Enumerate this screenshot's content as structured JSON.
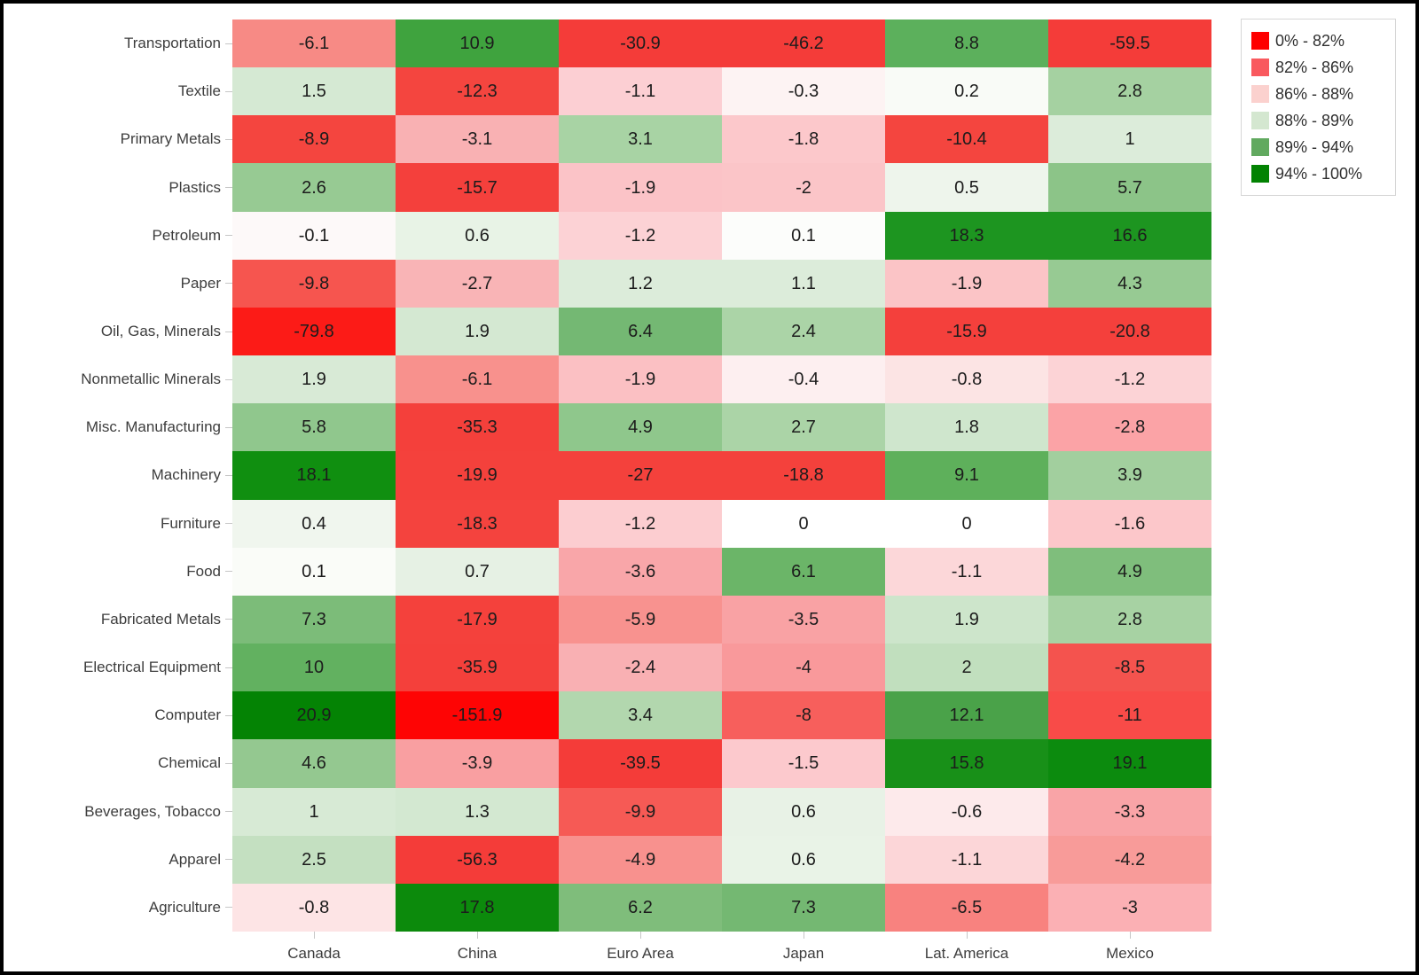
{
  "chart_data": {
    "type": "heatmap",
    "title": "",
    "xlabel": "",
    "ylabel": "",
    "grid": false,
    "columns": [
      "Canada",
      "China",
      "Euro Area",
      "Japan",
      "Lat. America",
      "Mexico"
    ],
    "rows": [
      {
        "label": "Transportation",
        "values": [
          -6.1,
          10.9,
          -30.9,
          -46.2,
          8.8,
          -59.5
        ],
        "colors": [
          "#f78a85",
          "#3fa33e",
          "#f43c39",
          "#f43c39",
          "#5cb05c",
          "#f43c39"
        ]
      },
      {
        "label": "Textile",
        "values": [
          1.5,
          -12.3,
          -1.1,
          -0.3,
          0.2,
          2.8
        ],
        "colors": [
          "#d5e9d3",
          "#f4453f",
          "#fccfd3",
          "#fdf3f3",
          "#f9fbf7",
          "#a5d1a1"
        ]
      },
      {
        "label": "Primary Metals",
        "values": [
          -8.9,
          -3.1,
          3.1,
          -1.8,
          -10.4,
          1
        ],
        "colors": [
          "#f4453f",
          "#f9b1b3",
          "#a8d3a4",
          "#fcc8cb",
          "#f4453f",
          "#dcecda"
        ]
      },
      {
        "label": "Plastics",
        "values": [
          2.6,
          -15.7,
          -1.9,
          -2,
          0.5,
          5.7
        ],
        "colors": [
          "#97ca93",
          "#f4403c",
          "#fbc3c7",
          "#fbc5c8",
          "#eef5ec",
          "#8cc488"
        ]
      },
      {
        "label": "Petroleum",
        "values": [
          -0.1,
          0.6,
          -1.2,
          0.1,
          18.3,
          16.6
        ],
        "colors": [
          "#fdf9f9",
          "#e8f3e6",
          "#fcd2d5",
          "#fcfdfb",
          "#1d9520",
          "#1d9520"
        ]
      },
      {
        "label": "Paper",
        "values": [
          -9.8,
          -2.7,
          1.2,
          1.1,
          -1.9,
          4.3
        ],
        "colors": [
          "#f6554f",
          "#f9b4b6",
          "#dcecda",
          "#dcecda",
          "#fbc4c6",
          "#97ca93"
        ]
      },
      {
        "label": "Oil, Gas, Minerals",
        "values": [
          -79.8,
          1.9,
          6.4,
          2.4,
          -15.9,
          -20.8
        ],
        "colors": [
          "#fc1b17",
          "#d4e8d2",
          "#74b873",
          "#abd4a7",
          "#f4403c",
          "#f4403c"
        ]
      },
      {
        "label": "Nonmetallic Minerals",
        "values": [
          1.9,
          -6.1,
          -1.9,
          -0.4,
          -0.8,
          -1.2
        ],
        "colors": [
          "#d8ead6",
          "#f8918d",
          "#fbc0c3",
          "#fdeff0",
          "#fce4e4",
          "#fcd3d6"
        ]
      },
      {
        "label": "Misc. Manufacturing",
        "values": [
          5.8,
          -35.3,
          4.9,
          2.7,
          1.8,
          -2.8
        ],
        "colors": [
          "#90c78d",
          "#f4403b",
          "#8fc78c",
          "#abd4a7",
          "#cfe6cd",
          "#fba3a6"
        ]
      },
      {
        "label": "Machinery",
        "values": [
          18.1,
          -19.9,
          -27,
          -18.8,
          9.1,
          3.9
        ],
        "colors": [
          "#108f10",
          "#f4413c",
          "#f4413c",
          "#f4413c",
          "#5eb05b",
          "#a2cf9e"
        ]
      },
      {
        "label": "Furniture",
        "values": [
          0.4,
          -18.3,
          -1.2,
          0,
          0,
          -1.6
        ],
        "colors": [
          "#f0f6ee",
          "#f4433e",
          "#fccdd0",
          "#ffffff",
          "#ffffff",
          "#fcc7ca"
        ]
      },
      {
        "label": "Food",
        "values": [
          0.1,
          0.7,
          -3.6,
          6.1,
          -1.1,
          4.9
        ],
        "colors": [
          "#fafcf8",
          "#e6f1e4",
          "#f9a6a9",
          "#6bb568",
          "#fcd7d9",
          "#7fbe7c"
        ]
      },
      {
        "label": "Fabricated Metals",
        "values": [
          7.3,
          -17.9,
          -5.9,
          -3.5,
          1.9,
          2.8
        ],
        "colors": [
          "#7cbc79",
          "#f4413c",
          "#f8928f",
          "#f9a2a4",
          "#cde5cb",
          "#a7d2a3"
        ]
      },
      {
        "label": "Electrical Equipment",
        "values": [
          10,
          -35.9,
          -2.4,
          -4,
          2,
          -8.5
        ],
        "colors": [
          "#62b160",
          "#f4403b",
          "#f9b0b3",
          "#f9999b",
          "#c1dfbe",
          "#f4534e"
        ]
      },
      {
        "label": "Computer",
        "values": [
          20.9,
          -151.9,
          3.4,
          -8,
          12.1,
          -11
        ],
        "colors": [
          "#048304",
          "#fe0404",
          "#b2d7ae",
          "#f75f5c",
          "#4aa249",
          "#f84b48"
        ]
      },
      {
        "label": "Chemical",
        "values": [
          4.6,
          -3.9,
          -39.5,
          -1.5,
          15.8,
          19.1
        ],
        "colors": [
          "#94c890",
          "#f99fa1",
          "#f43c39",
          "#fcc9cd",
          "#189018",
          "#0c8b0e"
        ]
      },
      {
        "label": "Beverages, Tobacco",
        "values": [
          1,
          1.3,
          -9.9,
          0.6,
          -0.6,
          -3.3
        ],
        "colors": [
          "#d7ead5",
          "#d3e8d1",
          "#f65a55",
          "#e8f2e6",
          "#fdeaeb",
          "#f9a4a7"
        ]
      },
      {
        "label": "Apparel",
        "values": [
          2.5,
          -56.3,
          -4.9,
          0.6,
          -1.1,
          -4.2
        ],
        "colors": [
          "#c4e0c1",
          "#f43c39",
          "#f8918e",
          "#e9f3e7",
          "#fcd6d8",
          "#f89b99"
        ]
      },
      {
        "label": "Agriculture",
        "values": [
          -0.8,
          17.8,
          6.2,
          7.3,
          -6.5,
          -3
        ],
        "colors": [
          "#fde4e5",
          "#0c8a0c",
          "#7fbd7b",
          "#74b872",
          "#f8827f",
          "#fbb0b4"
        ]
      }
    ],
    "legend": {
      "position": "top-right",
      "entries": [
        {
          "label": "0% - 82%",
          "color": "#fe0000"
        },
        {
          "label": "82% - 86%",
          "color": "#f9595e"
        },
        {
          "label": "86% - 88%",
          "color": "#fbd1ce"
        },
        {
          "label": "88% - 89%",
          "color": "#d4e7d0"
        },
        {
          "label": "89% - 94%",
          "color": "#61a95f"
        },
        {
          "label": "94% - 100%",
          "color": "#028202"
        }
      ]
    },
    "style_colors": {
      "background": "#ffffff",
      "frame_border": "#000000",
      "axis_text": "#3d3d3d",
      "cell_text": "#1c1c1c",
      "axis_tick": "#c6c6c6",
      "legend_border": "#d6d6d6"
    }
  }
}
